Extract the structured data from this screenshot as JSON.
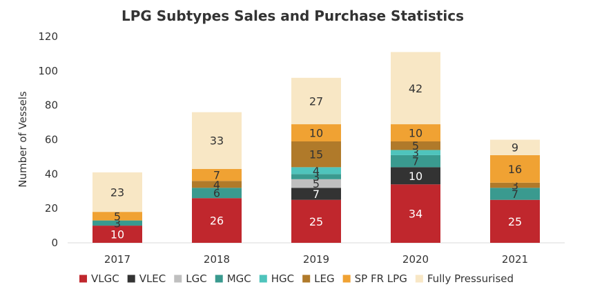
{
  "chart_data": {
    "type": "bar",
    "stacked": true,
    "title": "LPG Subtypes Sales and Purchase Statistics",
    "xlabel": "",
    "ylabel": "Number of Vessels",
    "ylim": [
      0,
      120
    ],
    "yticks": [
      0,
      20,
      40,
      60,
      80,
      100,
      120
    ],
    "grid": false,
    "legend_position": "bottom",
    "categories": [
      "2017",
      "2018",
      "2019",
      "2020",
      "2021"
    ],
    "series": [
      {
        "name": "VLGC",
        "color": "#c0272d",
        "label_color": "#ffffff",
        "values": [
          10,
          26,
          25,
          34,
          25
        ]
      },
      {
        "name": "VLEC",
        "color": "#333333",
        "label_color": "#ffffff",
        "values": [
          0,
          0,
          7,
          10,
          0
        ]
      },
      {
        "name": "LGC",
        "color": "#bfbfbf",
        "label_color": "#333333",
        "values": [
          0,
          0,
          5,
          0,
          0
        ]
      },
      {
        "name": "MGC",
        "color": "#3a9a8f",
        "label_color": "#333333",
        "values": [
          3,
          6,
          3,
          7,
          7
        ]
      },
      {
        "name": "HGC",
        "color": "#4fc4bc",
        "label_color": "#333333",
        "values": [
          0,
          0,
          4,
          3,
          0
        ]
      },
      {
        "name": "LEG",
        "color": "#b07a2a",
        "label_color": "#333333",
        "values": [
          0,
          4,
          15,
          5,
          3
        ]
      },
      {
        "name": "SP FR LPG",
        "color": "#f0a233",
        "label_color": "#333333",
        "values": [
          5,
          7,
          10,
          10,
          16
        ]
      },
      {
        "name": "Fully Pressurised",
        "color": "#f8e7c5",
        "label_color": "#333333",
        "values": [
          23,
          33,
          27,
          42,
          9
        ]
      }
    ]
  }
}
